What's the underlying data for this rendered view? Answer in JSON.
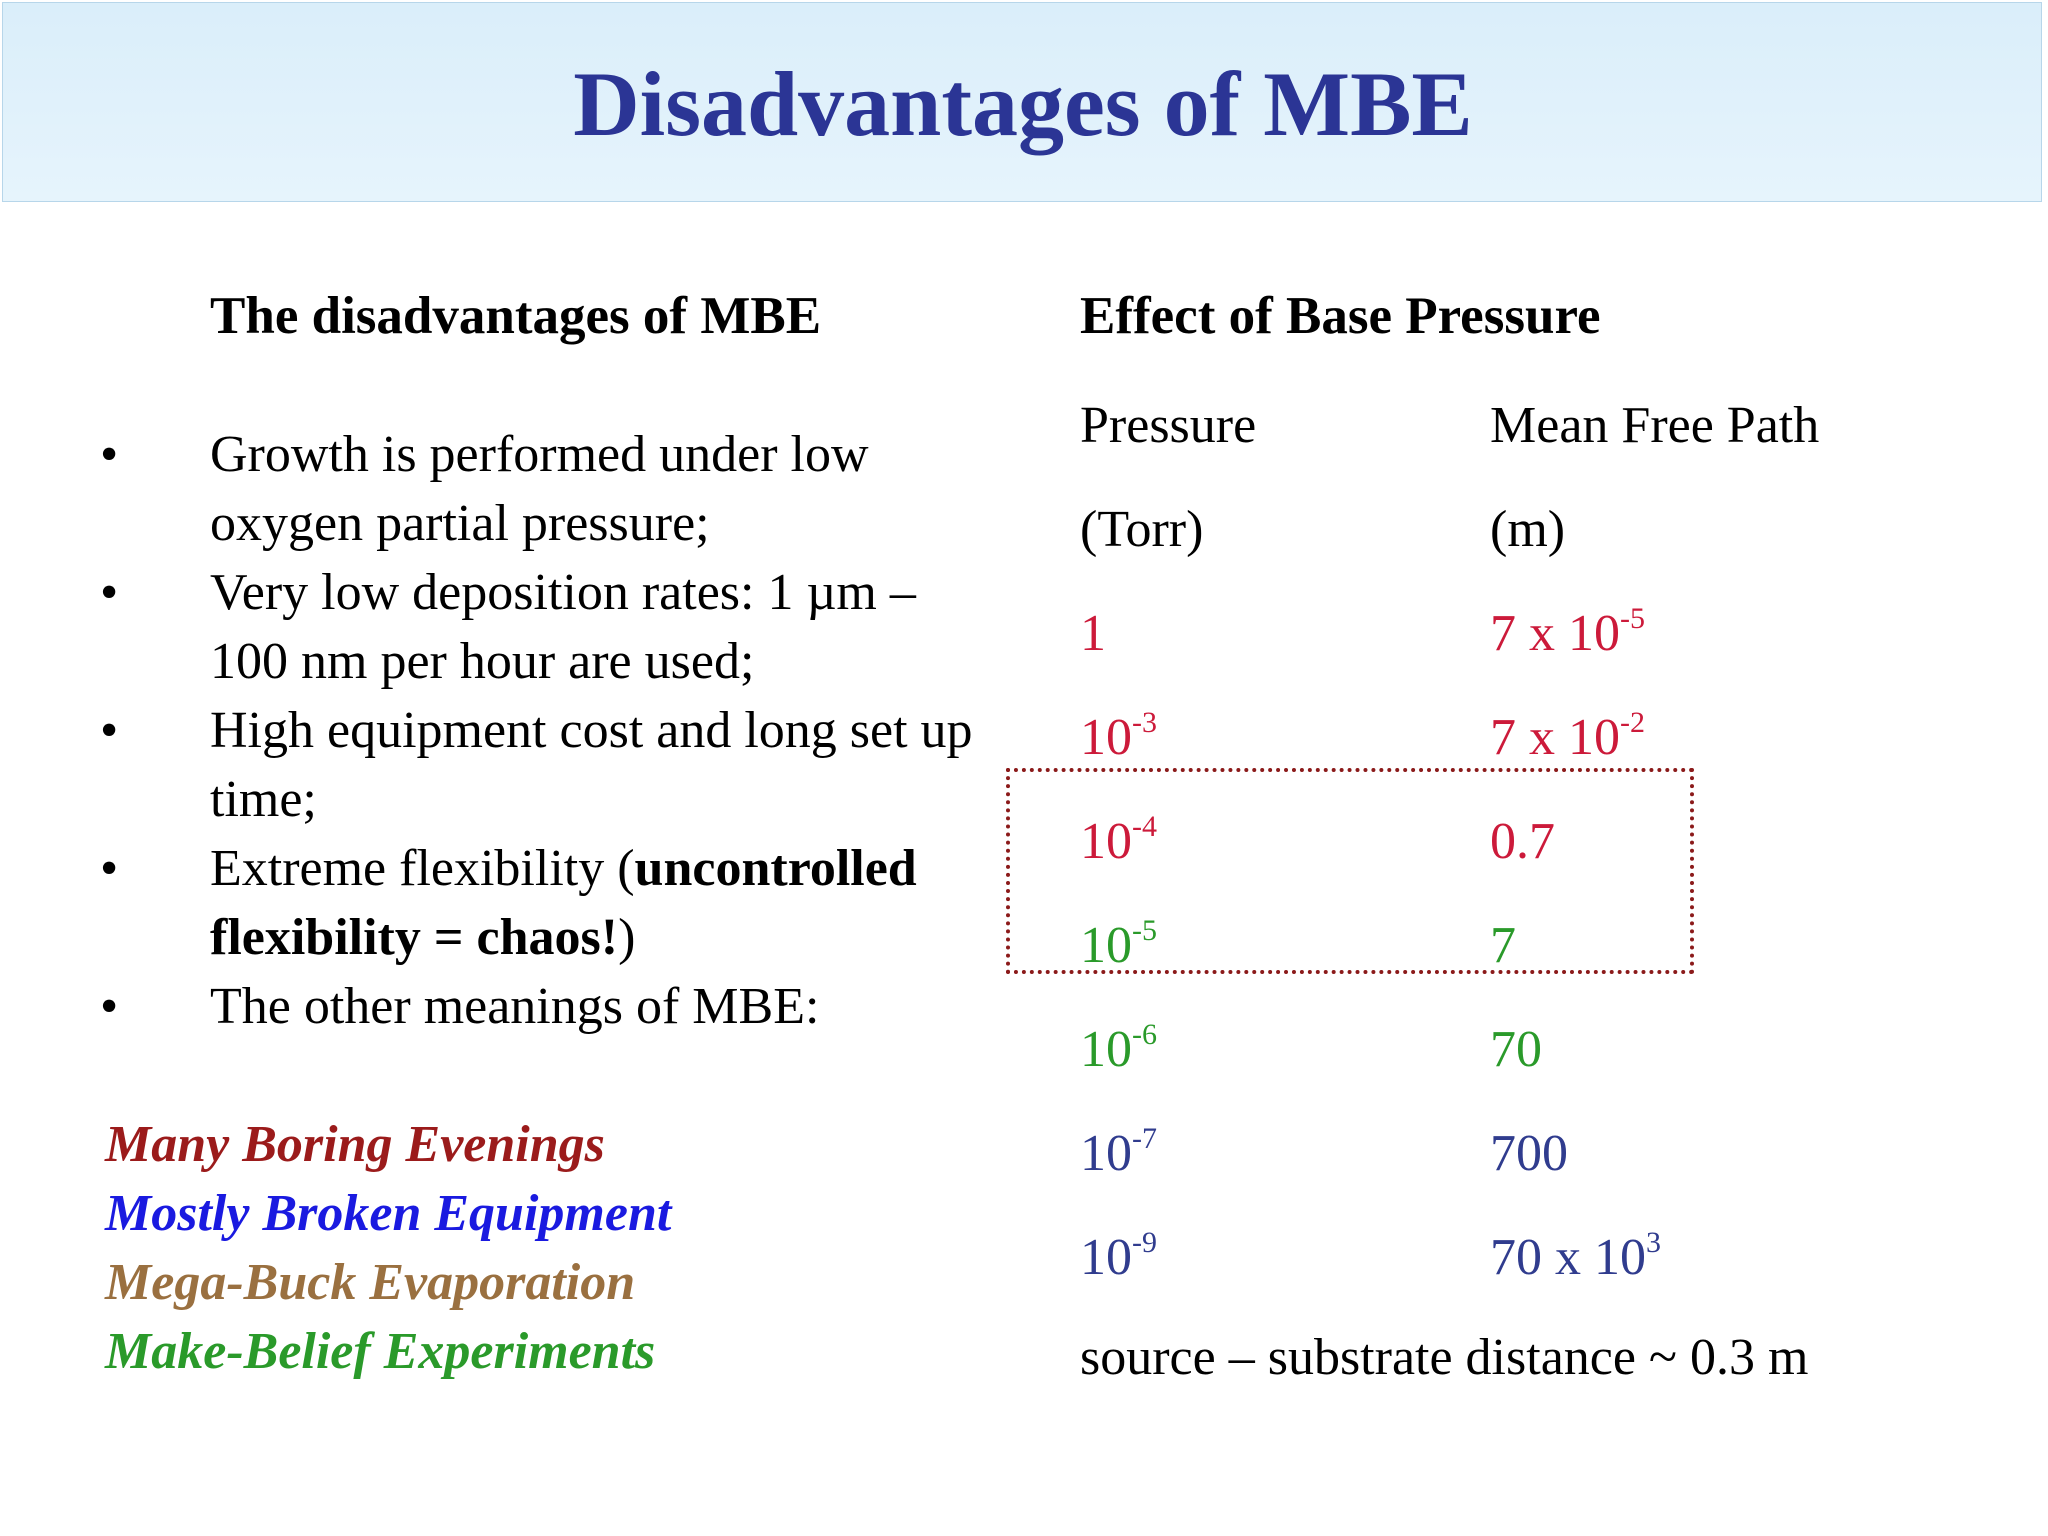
{
  "title": "Disadvantages of MBE",
  "left": {
    "heading": "The disadvantages of MBE",
    "bullet_symbol": "•",
    "bullets": [
      {
        "text": "Growth is performed under low oxygen partial pressure;"
      },
      {
        "text": "Very low deposition rates: 1 µm – 100 nm per hour are used;"
      },
      {
        "text": "High equipment cost and long set up time;"
      },
      {
        "text_a": "Extreme flexibility (",
        "bold": "uncontrolled flexibility = chaos!",
        "text_b": ")"
      },
      {
        "text": "The other meanings of MBE:"
      }
    ],
    "meanings": [
      {
        "text": "Many Boring Evenings",
        "color": "#9b1b1b"
      },
      {
        "text": "Mostly Broken Equipment",
        "color": "#1a1ae0"
      },
      {
        "text": "Mega-Buck Evaporation",
        "color": "#9a7040"
      },
      {
        "text": "Make-Belief Experiments",
        "color": "#2a9a2a"
      }
    ]
  },
  "right": {
    "heading": "Effect of Base Pressure",
    "col1_header": "Pressure",
    "col1_unit": "(Torr)",
    "col2_header": "Mean Free Path",
    "col2_unit": "(m)",
    "rows": [
      {
        "p_base": "1",
        "p_exp": "",
        "m_base": "7 x 10",
        "m_exp": "-5",
        "color": "red"
      },
      {
        "p_base": "10",
        "p_exp": "-3",
        "m_base": "7 x 10",
        "m_exp": "-2",
        "color": "red"
      },
      {
        "p_base": "10",
        "p_exp": "-4",
        "m_base": "0.7",
        "m_exp": "",
        "color": "red"
      },
      {
        "p_base": "10",
        "p_exp": "-5",
        "m_base": "7",
        "m_exp": "",
        "color": "green"
      },
      {
        "p_base": "10",
        "p_exp": "-6",
        "m_base": "70",
        "m_exp": "",
        "color": "green"
      },
      {
        "p_base": "10",
        "p_exp": "-7",
        "m_base": "700",
        "m_exp": "",
        "color": "navy"
      },
      {
        "p_base": "10",
        "p_exp": "-9",
        "m_base": "70 x 10",
        "m_exp": "3",
        "color": "navy"
      }
    ],
    "footer": "source – substrate distance ~ 0.3 m"
  }
}
